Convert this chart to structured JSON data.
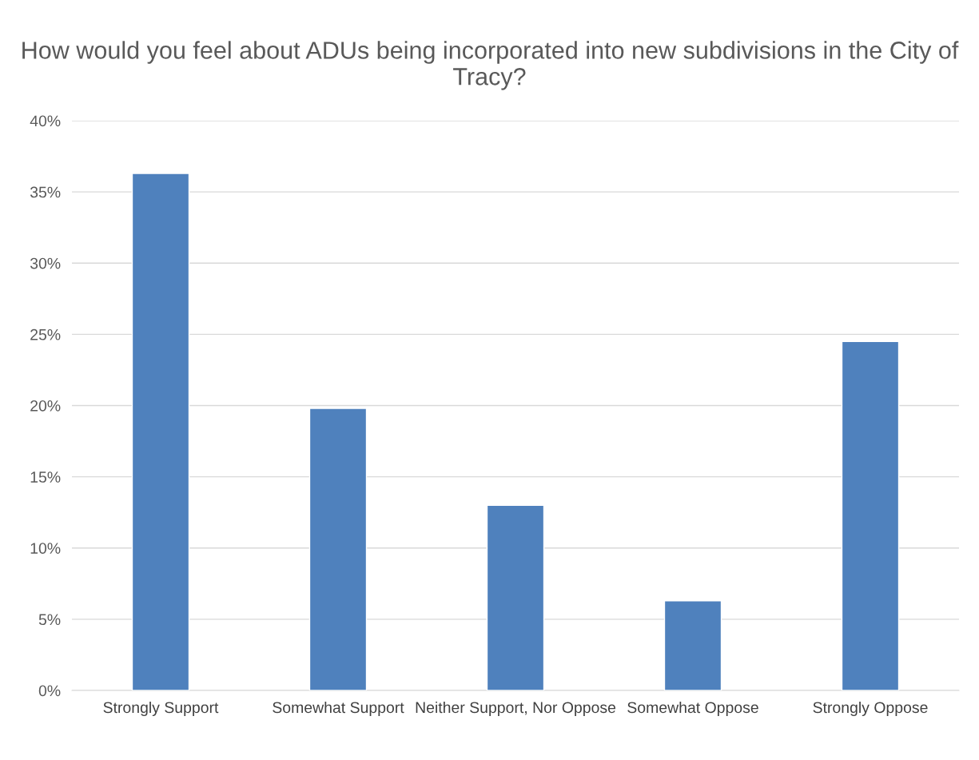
{
  "chart_data": {
    "type": "bar",
    "title": "How would you feel about ADUs being incorporated into new subdivisions in the City of Tracy?",
    "categories": [
      "Strongly Support",
      "Somewhat Support",
      "Neither Support, Nor Oppose",
      "Somewhat Oppose",
      "Strongly Oppose"
    ],
    "values": [
      36.3,
      19.8,
      13.0,
      6.3,
      24.5
    ],
    "color": "#4f81bd",
    "ylim": [
      0,
      40
    ],
    "yticks": [
      {
        "value": 0,
        "label": "0%"
      },
      {
        "value": 5,
        "label": "5%"
      },
      {
        "value": 10,
        "label": "10%"
      },
      {
        "value": 15,
        "label": "15%"
      },
      {
        "value": 20,
        "label": "20%"
      },
      {
        "value": 25,
        "label": "25%"
      },
      {
        "value": 30,
        "label": "30%"
      },
      {
        "value": 35,
        "label": "35%"
      },
      {
        "value": 40,
        "label": "40%"
      }
    ],
    "grid": "y"
  }
}
